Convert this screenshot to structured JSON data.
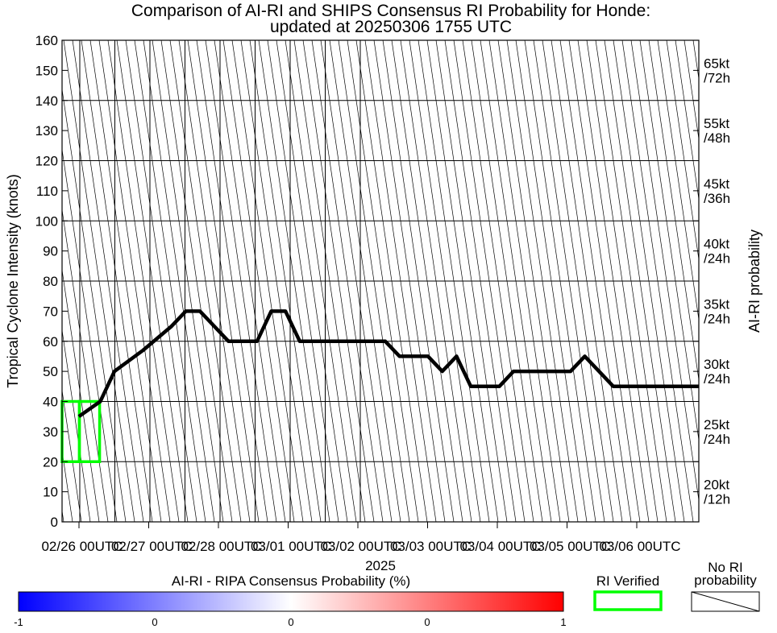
{
  "chart_data": {
    "type": "line",
    "title": "Comparison of AI-RI and SHIPS Consensus RI Probability for Honde:",
    "subtitle": "updated at 20250306 1755 UTC",
    "ylabel": "Tropical Cyclone Intensity (knots)",
    "xlabel": "2025",
    "right_label": "AI-RI probability",
    "ylim": [
      0,
      160
    ],
    "yticks": [
      0,
      10,
      20,
      30,
      40,
      50,
      60,
      70,
      80,
      90,
      100,
      110,
      120,
      130,
      140,
      150,
      160
    ],
    "xlim_hours": [
      0,
      264
    ],
    "x_tick_labels": [
      "02/26 00UTC",
      "02/27 00UTC",
      "02/28 00UTC",
      "03/01 00UTC",
      "03/02 00UTC",
      "03/03 00UTC",
      "03/04 00UTC",
      "03/05 00UTC",
      "03/06 00UTC"
    ],
    "right_thresholds": [
      {
        "kt": "20kt",
        "period": "/12h"
      },
      {
        "kt": "25kt",
        "period": "/24h"
      },
      {
        "kt": "30kt",
        "period": "/24h"
      },
      {
        "kt": "35kt",
        "period": "/24h"
      },
      {
        "kt": "40kt",
        "period": "/24h"
      },
      {
        "kt": "45kt",
        "period": "/36h"
      },
      {
        "kt": "55kt",
        "period": "/48h"
      },
      {
        "kt": "65kt",
        "period": "/72h"
      }
    ],
    "series": [
      {
        "color": "#000000",
        "x": [
          3,
          12,
          18,
          30,
          42,
          48,
          54,
          66,
          78,
          84,
          90,
          96,
          102,
          132,
          138,
          150,
          156,
          162,
          168,
          180,
          186,
          192,
          210,
          216,
          222,
          228,
          246,
          264
        ],
        "y": [
          35,
          40,
          50,
          57,
          65,
          70,
          70,
          60,
          60,
          70,
          70,
          60,
          60,
          60,
          55,
          55,
          50,
          55,
          45,
          45,
          50,
          50,
          50,
          55,
          50,
          45,
          45,
          45
        ]
      }
    ],
    "ri_verified_boxes": [
      {
        "x": [
          0,
          6
        ],
        "y": [
          20,
          40
        ]
      },
      {
        "x": [
          6,
          13
        ],
        "y": [
          20,
          40
        ]
      }
    ],
    "colorbar": {
      "label": "AI-RI - RIPA Consensus Probability (%)",
      "tick_labels": [
        "-1",
        "0",
        "0",
        "0",
        "1"
      ],
      "colors": [
        "#0000ff",
        "#ffffff",
        "#ff0000"
      ]
    },
    "legend": {
      "verified_label": "RI Verified",
      "verified_color": "#00ff00",
      "no_ri_line1": "No RI",
      "no_ri_line2": "probability"
    },
    "grid": true
  }
}
